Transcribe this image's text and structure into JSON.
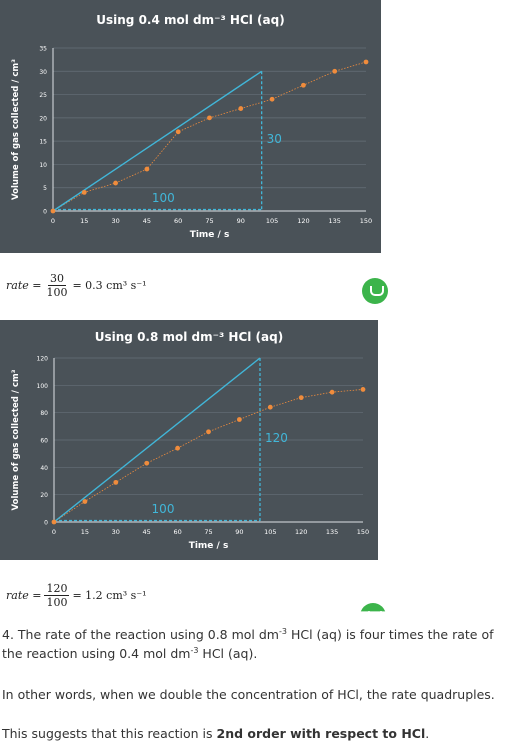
{
  "charts": [
    {
      "title": "Using 0.4 mol dm⁻³ HCl (aq)",
      "y_label": "Volume of gas collected / cm³",
      "x_label": "Time / s",
      "triangle_base_label": "100",
      "triangle_height_label": "30"
    },
    {
      "title": "Using 0.8 mol dm⁻³ HCl (aq)",
      "y_label": "Volume of gas collected / cm³",
      "x_label": "Time / s",
      "triangle_base_label": "100",
      "triangle_height_label": "120"
    }
  ],
  "chart_data": [
    {
      "type": "scatter",
      "title": "Using 0.4 mol dm⁻³ HCl (aq)",
      "xlabel": "Time / s",
      "ylabel": "Volume of gas collected / cm³",
      "xlim": [
        0,
        150
      ],
      "ylim": [
        0,
        35
      ],
      "x_ticks": [
        0,
        15,
        30,
        45,
        60,
        75,
        90,
        105,
        120,
        135,
        150
      ],
      "y_ticks": [
        0,
        5,
        10,
        15,
        20,
        25,
        30,
        35
      ],
      "points": [
        [
          0,
          0
        ],
        [
          15,
          4
        ],
        [
          30,
          6
        ],
        [
          45,
          9
        ],
        [
          60,
          17
        ],
        [
          75,
          20
        ],
        [
          90,
          22
        ],
        [
          105,
          24
        ],
        [
          120,
          27
        ],
        [
          135,
          30
        ],
        [
          150,
          32
        ]
      ],
      "tangent": [
        [
          0,
          0
        ],
        [
          100,
          30
        ]
      ],
      "triangle": {
        "x_start": 0,
        "x_end": 100,
        "y_end": 30,
        "base": "100",
        "height": "30"
      },
      "colors": {
        "points": "#f08c3c",
        "tangent": "#41b6d8",
        "background": "#4a5258"
      }
    },
    {
      "type": "scatter",
      "title": "Using 0.8 mol dm⁻³ HCl (aq)",
      "xlabel": "Time / s",
      "ylabel": "Volume of gas collected / cm³",
      "xlim": [
        0,
        150
      ],
      "ylim": [
        0,
        120
      ],
      "x_ticks": [
        0,
        15,
        30,
        45,
        60,
        75,
        90,
        105,
        120,
        135,
        150
      ],
      "y_ticks": [
        0,
        20,
        40,
        60,
        80,
        100,
        120
      ],
      "points": [
        [
          0,
          0
        ],
        [
          15,
          15
        ],
        [
          30,
          29
        ],
        [
          45,
          43
        ],
        [
          60,
          54
        ],
        [
          75,
          66
        ],
        [
          90,
          75
        ],
        [
          105,
          84
        ],
        [
          120,
          91
        ],
        [
          135,
          95
        ],
        [
          150,
          97
        ]
      ],
      "tangent": [
        [
          0,
          0
        ],
        [
          100,
          120
        ]
      ],
      "triangle": {
        "x_start": 0,
        "x_end": 100,
        "y_end": 120,
        "base": "100",
        "height": "120"
      },
      "colors": {
        "points": "#f08c3c",
        "tangent": "#41b6d8",
        "background": "#4a5258"
      }
    }
  ],
  "formulas": [
    {
      "prefix": "rate =",
      "numerator": "30",
      "denominator": "100",
      "result": "= 0.3 cm³ s⁻¹"
    },
    {
      "prefix": "rate =",
      "numerator": "120",
      "denominator": "100",
      "result": "= 1.2 cm³ s⁻¹"
    }
  ],
  "text": {
    "conclusion_a": "4. The rate of the reaction using 0.8 mol dm",
    "conclusion_sup1": "-3",
    "conclusion_b": " HCl (aq) is four times the rate of the reaction using 0.4 mol dm",
    "conclusion_sup2": "-3",
    "conclusion_c": " HCl (aq).",
    "other_words": "In other words, when we double the concentration of HCl, the rate quadruples.",
    "suggests_a": "This suggests that this reaction is ",
    "suggests_bold": "2nd order with respect to HCl",
    "suggests_c": "."
  }
}
